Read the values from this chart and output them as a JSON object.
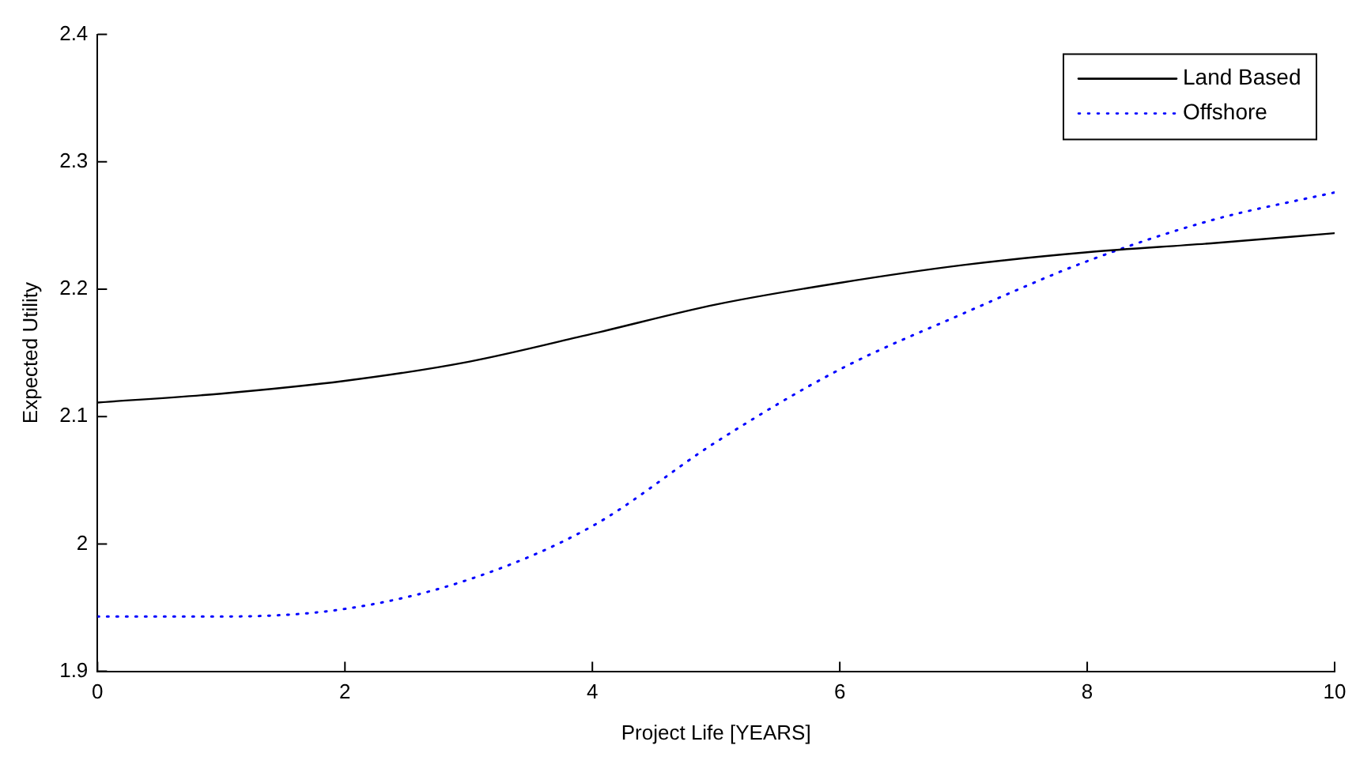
{
  "chart_data": {
    "type": "line",
    "xlabel": "Project Life [YEARS]",
    "ylabel": "Expected Utility",
    "x": [
      0,
      1,
      2,
      3,
      4,
      5,
      6,
      7,
      8,
      9,
      10
    ],
    "series": [
      {
        "name": "Land Based",
        "color": "#000000",
        "line_style": "solid",
        "values": [
          2.111,
          2.118,
          2.128,
          2.143,
          2.165,
          2.188,
          2.205,
          2.219,
          2.229,
          2.236,
          2.244
        ]
      },
      {
        "name": "Offshore",
        "color": "#0000ff",
        "line_style": "dotted",
        "values": [
          1.943,
          1.943,
          1.949,
          1.972,
          2.014,
          2.08,
          2.137,
          2.181,
          2.222,
          2.254,
          2.276
        ]
      }
    ],
    "xlim": [
      0,
      10
    ],
    "xticks": [
      0,
      2,
      4,
      6,
      8,
      10
    ],
    "ylim": [
      1.9,
      2.4
    ],
    "yticks": [
      1.9,
      2,
      2.1,
      2.2,
      2.3,
      2.4
    ],
    "grid": false,
    "legend": "top right",
    "marker": "none"
  }
}
